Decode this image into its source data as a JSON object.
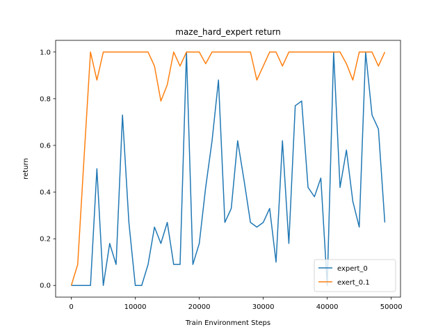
{
  "chart_data": {
    "type": "line",
    "title": "maze_hard_expert return",
    "xlabel": "Train Environment Steps",
    "ylabel": "return",
    "xlim": [
      -2450,
      51450
    ],
    "ylim": [
      -0.05,
      1.05
    ],
    "xticks": [
      0,
      10000,
      20000,
      30000,
      40000,
      50000
    ],
    "xtick_labels": [
      "0",
      "10000",
      "20000",
      "30000",
      "40000",
      "50000"
    ],
    "yticks": [
      0.0,
      0.2,
      0.4,
      0.6,
      0.8,
      1.0
    ],
    "ytick_labels": [
      "0.0",
      "0.2",
      "0.4",
      "0.6",
      "0.8",
      "1.0"
    ],
    "grid": false,
    "legend_position": "lower-right",
    "x": [
      0,
      1000,
      2000,
      3000,
      4000,
      5000,
      6000,
      7000,
      8000,
      9000,
      10000,
      11000,
      12000,
      13000,
      14000,
      15000,
      16000,
      17000,
      18000,
      19000,
      20000,
      21000,
      22000,
      23000,
      24000,
      25000,
      26000,
      27000,
      28000,
      29000,
      30000,
      31000,
      32000,
      33000,
      34000,
      35000,
      36000,
      37000,
      38000,
      39000,
      40000,
      41000,
      42000,
      43000,
      44000,
      45000,
      46000,
      47000,
      48000,
      49000
    ],
    "series": [
      {
        "name": "expert_0",
        "color": "#1f77b4",
        "values": [
          0.0,
          0.0,
          0.0,
          0.0,
          0.5,
          0.0,
          0.18,
          0.09,
          0.73,
          0.27,
          0.0,
          0.0,
          0.09,
          0.25,
          0.18,
          0.27,
          0.09,
          0.09,
          1.0,
          0.09,
          0.18,
          0.42,
          0.62,
          0.88,
          0.27,
          0.33,
          0.62,
          0.45,
          0.27,
          0.25,
          0.27,
          0.33,
          0.1,
          0.62,
          0.18,
          0.77,
          0.79,
          0.42,
          0.38,
          0.46,
          0.0,
          1.0,
          0.42,
          0.58,
          0.36,
          0.25,
          1.0,
          0.73,
          0.67,
          0.27
        ]
      },
      {
        "name": "exert_0.1",
        "color": "#ff7f0e",
        "values": [
          0.0,
          0.09,
          0.55,
          1.0,
          0.88,
          1.0,
          1.0,
          1.0,
          1.0,
          1.0,
          1.0,
          1.0,
          1.0,
          0.94,
          0.79,
          0.86,
          1.0,
          0.94,
          1.0,
          1.0,
          1.0,
          0.95,
          1.0,
          1.0,
          1.0,
          1.0,
          1.0,
          1.0,
          1.0,
          0.88,
          0.94,
          1.0,
          1.0,
          0.94,
          1.0,
          1.0,
          1.0,
          1.0,
          1.0,
          1.0,
          1.0,
          1.0,
          1.0,
          0.95,
          0.88,
          1.0,
          1.0,
          1.0,
          0.94,
          1.0
        ]
      }
    ]
  }
}
